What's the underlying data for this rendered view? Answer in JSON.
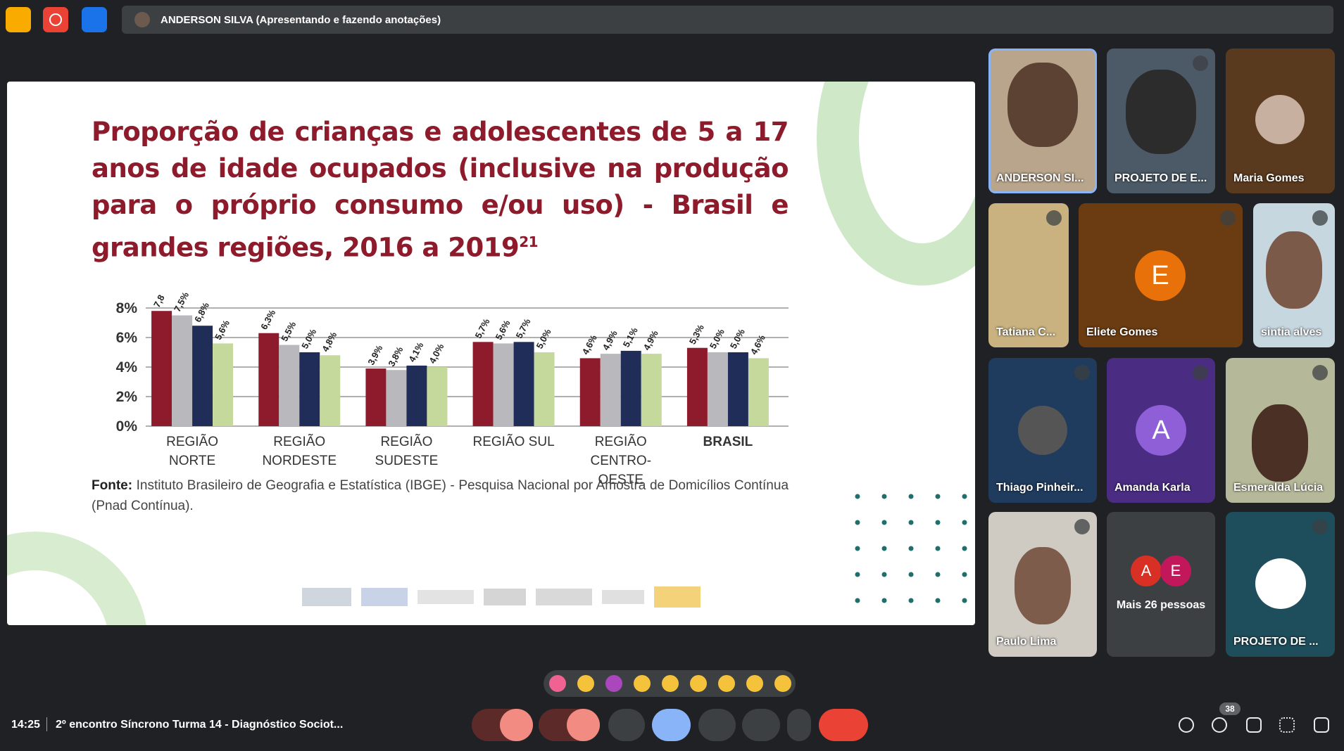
{
  "top_bar": {
    "presenter": "ANDERSON SILVA (Apresentando e fazendo anotações)"
  },
  "slide": {
    "title": "Proporção de crianças e adolescentes de 5 a 17 anos de idade ocupados (inclusive na produção para o próprio consumo e/ou uso) - Brasil e grandes regiões, 2016 a 2019",
    "title_superscript": "21",
    "source_label": "Fonte:",
    "source_text": "Instituto Brasileiro de Geografia e Estatística (IBGE) - Pesquisa Nacional por Amostra de Domicílios Contínua (Pnad Contínua)."
  },
  "chart_data": {
    "type": "bar",
    "categories": [
      "REGIÃO NORTE",
      "REGIÃO NORDESTE",
      "REGIÃO SUDESTE",
      "REGIÃO SUL",
      "REGIÃO CENTRO-OESTE",
      "BRASIL"
    ],
    "series": [
      {
        "color": "#8e1b2b",
        "values": [
          7.8,
          6.3,
          3.9,
          5.7,
          4.6,
          5.3
        ],
        "value_labels": [
          "7,8",
          "6,3%",
          "3,9%",
          "5,7%",
          "4,6%",
          "5,3%"
        ]
      },
      {
        "color": "#b9b9bd",
        "values": [
          7.5,
          5.5,
          3.8,
          5.6,
          4.9,
          5.0
        ],
        "value_labels": [
          "7,5%",
          "5,5%",
          "3,8%",
          "5,6%",
          "4,9%",
          "5,0%"
        ]
      },
      {
        "color": "#1f2d58",
        "values": [
          6.8,
          5.0,
          4.1,
          5.7,
          5.1,
          5.0
        ],
        "value_labels": [
          "6,8%",
          "5,0%",
          "4,1%",
          "5,7%",
          "5,1%",
          "5,0%"
        ]
      },
      {
        "color": "#c6d99c",
        "values": [
          5.6,
          4.8,
          4.0,
          5.0,
          4.9,
          4.6
        ],
        "value_labels": [
          "5,6%",
          "4,8%",
          "4,0%",
          "5,0%",
          "4,9%",
          "4,6%"
        ]
      }
    ],
    "ylim": [
      0,
      8
    ],
    "yticks": [
      {
        "value": 0,
        "label": "0%"
      },
      {
        "value": 2,
        "label": "2%"
      },
      {
        "value": 4,
        "label": "4%"
      },
      {
        "value": 6,
        "label": "6%"
      },
      {
        "value": 8,
        "label": "8%"
      }
    ],
    "grid": true
  },
  "participants": [
    {
      "name": "ANDERSON SI..."
    },
    {
      "name": "PROJETO DE E..."
    },
    {
      "name": "Maria Gomes"
    },
    {
      "name": "Tatiana C..."
    },
    {
      "name": "Eliete Gomes",
      "avatar": "E"
    },
    {
      "name": "sintia alves"
    },
    {
      "name": "Thiago Pinheir..."
    },
    {
      "name": "Amanda Karla",
      "avatar": "A"
    },
    {
      "name": "Esmeralda Lúcia"
    },
    {
      "name": "Paulo Lima"
    },
    {
      "name": "PROJETO DE ..."
    }
  ],
  "more_people": {
    "label": "Mais 26 pessoas",
    "avatars": [
      "A",
      "E"
    ]
  },
  "bottom_bar": {
    "time": "14:25",
    "meeting": "2º encontro Síncrono Turma 14 - Diagnóstico Sociot...",
    "participant_count": 38
  }
}
